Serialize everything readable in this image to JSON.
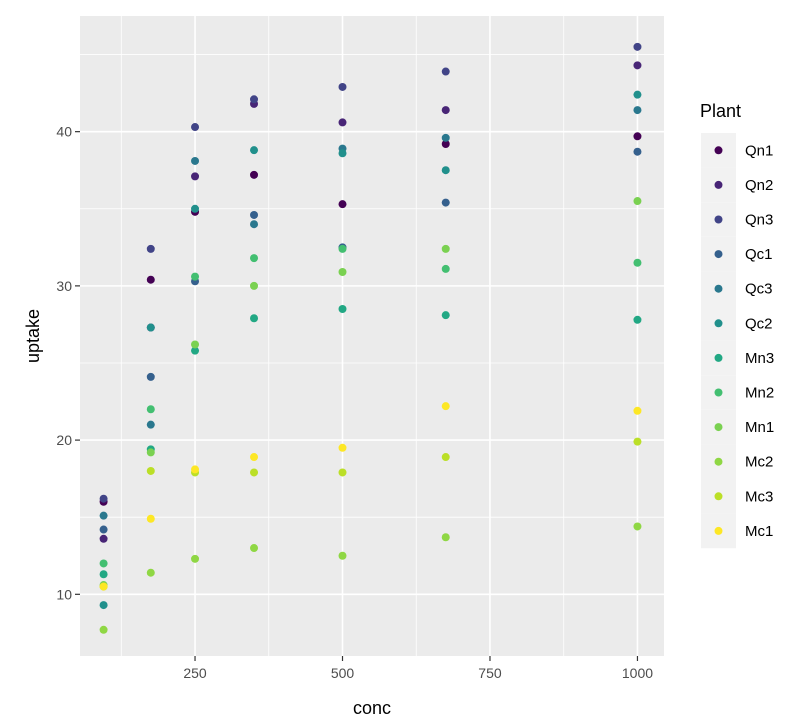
{
  "chart_data": {
    "type": "scatter",
    "xlabel": "conc",
    "ylabel": "uptake",
    "xlim": [
      55,
      1045
    ],
    "ylim": [
      6,
      47.5
    ],
    "x_ticks": [
      250,
      500,
      750,
      1000
    ],
    "x_tick_labels": [
      "250",
      "500",
      "750",
      "1000"
    ],
    "x_minor": [
      125,
      375,
      625,
      875
    ],
    "y_ticks": [
      10,
      20,
      30,
      40
    ],
    "y_tick_labels": [
      "10",
      "20",
      "30",
      "40"
    ],
    "y_minor": [
      15,
      25,
      35,
      45
    ],
    "grid": true,
    "panel_background": "#ebebeb",
    "legend_title": "Plant",
    "legend_position": "right",
    "x": [
      95,
      175,
      250,
      350,
      500,
      675,
      1000
    ],
    "series": [
      {
        "name": "Qn1",
        "color": "#440154",
        "values": [
          16.0,
          30.4,
          34.8,
          37.2,
          35.3,
          39.2,
          39.7
        ]
      },
      {
        "name": "Qn2",
        "color": "#482576",
        "values": [
          13.6,
          27.3,
          37.1,
          41.8,
          40.6,
          41.4,
          44.3
        ]
      },
      {
        "name": "Qn3",
        "color": "#414487",
        "values": [
          16.2,
          32.4,
          40.3,
          42.1,
          42.9,
          43.9,
          45.5
        ]
      },
      {
        "name": "Qc1",
        "color": "#35608D",
        "values": [
          14.2,
          24.1,
          30.3,
          34.6,
          32.5,
          35.4,
          38.7
        ]
      },
      {
        "name": "Qc3",
        "color": "#2A788E",
        "values": [
          15.1,
          21.0,
          38.1,
          34.0,
          38.9,
          39.6,
          41.4
        ]
      },
      {
        "name": "Qc2",
        "color": "#21908C",
        "values": [
          9.3,
          27.3,
          35.0,
          38.8,
          38.6,
          37.5,
          42.4
        ]
      },
      {
        "name": "Mn3",
        "color": "#22A884",
        "values": [
          11.3,
          19.4,
          25.8,
          27.9,
          28.5,
          28.1,
          27.8
        ]
      },
      {
        "name": "Mn2",
        "color": "#43BF71",
        "values": [
          12.0,
          22.0,
          30.6,
          31.8,
          32.4,
          31.1,
          31.5
        ]
      },
      {
        "name": "Mn1",
        "color": "#7AD151",
        "values": [
          10.6,
          19.2,
          26.2,
          30.0,
          30.9,
          32.4,
          35.5
        ]
      },
      {
        "name": "Mc2",
        "color": "#8FD744",
        "values": [
          7.7,
          11.4,
          12.3,
          13.0,
          12.5,
          13.7,
          14.4
        ]
      },
      {
        "name": "Mc3",
        "color": "#BBDF27",
        "values": [
          10.5,
          18.0,
          17.9,
          17.9,
          17.9,
          18.9,
          19.9
        ]
      },
      {
        "name": "Mc1",
        "color": "#FDE725",
        "values": [
          10.5,
          14.9,
          18.1,
          18.9,
          19.5,
          22.2,
          21.9
        ]
      }
    ]
  }
}
